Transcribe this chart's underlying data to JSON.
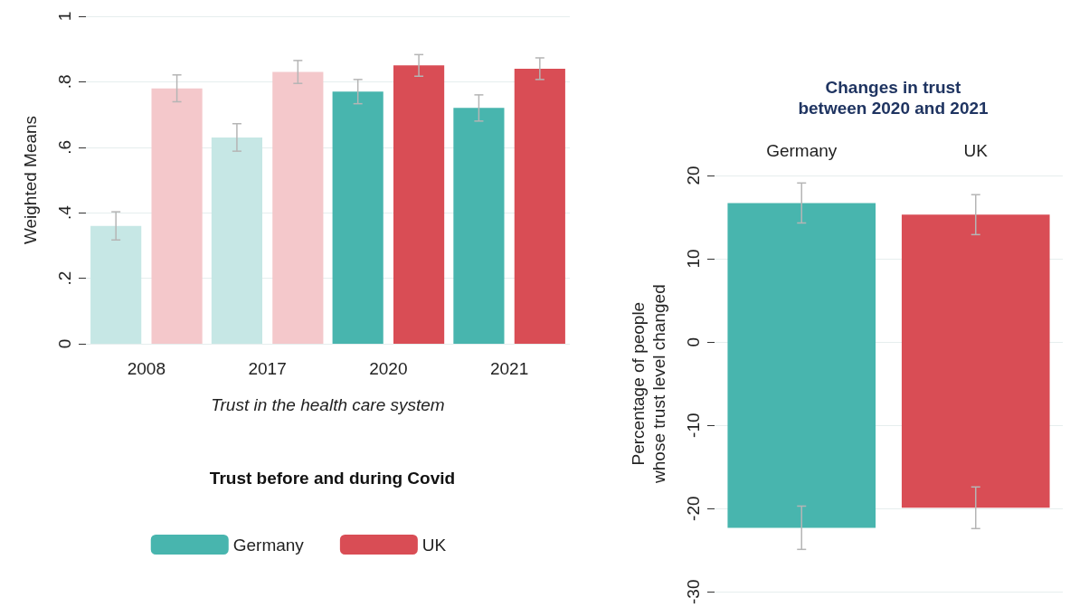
{
  "chart_data": [
    {
      "type": "bar",
      "title": "Trust before and during Covid",
      "xlabel": "Trust in the health care system",
      "ylabel": "Weighted Means",
      "categories": [
        "2008",
        "2017",
        "2020",
        "2021"
      ],
      "series": [
        {
          "name": "Germany",
          "color": "#48b5ae",
          "colors": [
            "#c6e7e5",
            "#c6e7e5",
            "#48b5ae",
            "#48b5ae"
          ],
          "values": [
            0.36,
            0.63,
            0.77,
            0.72
          ],
          "errors": [
            0.043,
            0.042,
            0.037,
            0.04
          ]
        },
        {
          "name": "UK",
          "color": "#d94d55",
          "colors": [
            "#f4c8cb",
            "#f4c8cb",
            "#d94d55",
            "#d94d55"
          ],
          "values": [
            0.78,
            0.83,
            0.85,
            0.84
          ],
          "errors": [
            0.041,
            0.035,
            0.033,
            0.033
          ]
        }
      ],
      "ylim": [
        0,
        1
      ],
      "yticks": [
        {
          "value": 0,
          "label": "0"
        },
        {
          "value": 0.2,
          "label": ".2"
        },
        {
          "value": 0.4,
          "label": ".4"
        },
        {
          "value": 0.6,
          "label": ".6"
        },
        {
          "value": 0.8,
          "label": ".8"
        },
        {
          "value": 1,
          "label": "1"
        }
      ],
      "grid": "y",
      "legend": "bottom"
    },
    {
      "type": "bar",
      "stacked": true,
      "title": "Changes in trust\nbetween 2020 and 2021",
      "ylabel": "Percentage of people\nwhose trust level changed",
      "categories": [
        "Germany",
        "UK"
      ],
      "series": [
        {
          "colors": [
            "#48b5ae",
            "#d94d55"
          ],
          "values": [
            16.7,
            15.3
          ],
          "errors": [
            2.4,
            2.4
          ]
        },
        {
          "colors": [
            "#48b5ae",
            "#d94d55"
          ],
          "values": [
            -22.3,
            -19.9
          ],
          "errors": [
            2.6,
            2.5
          ]
        }
      ],
      "ylim": [
        -30,
        20
      ],
      "yticks": [
        -30,
        -20,
        -10,
        0,
        10,
        20
      ],
      "grid": "y"
    }
  ]
}
